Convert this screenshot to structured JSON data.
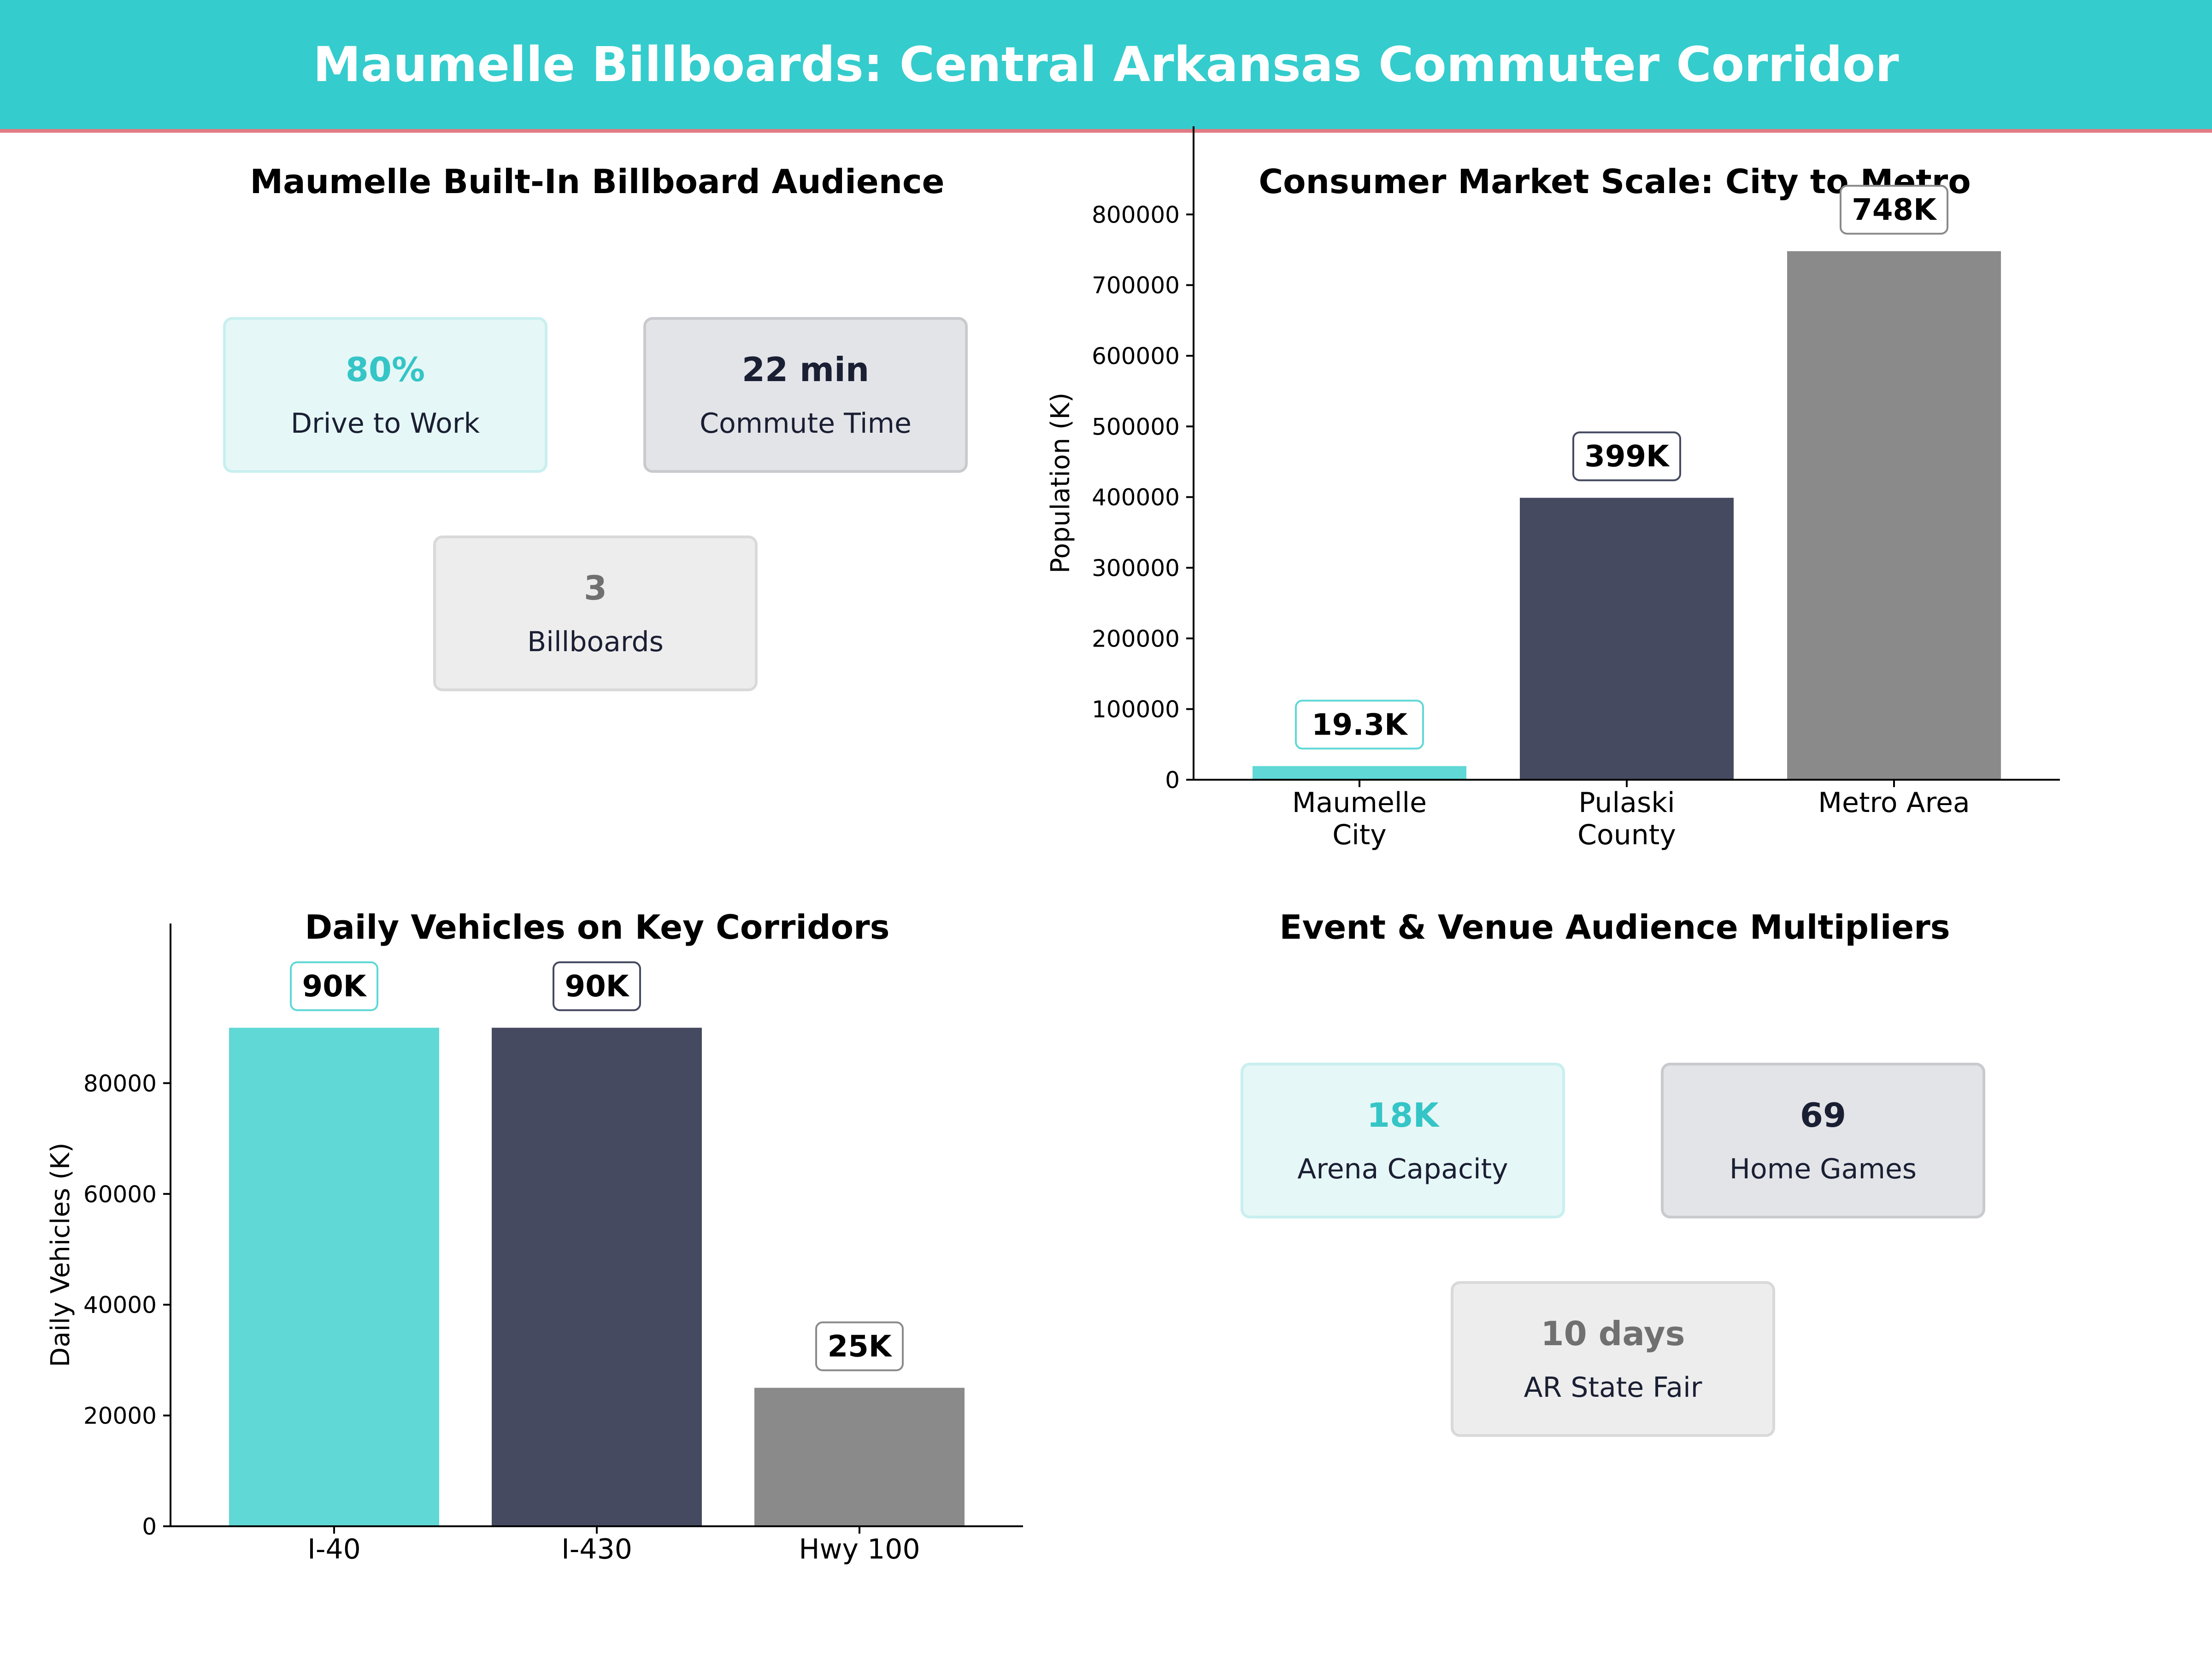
{
  "header": {
    "title": "Maumelle Billboards: Central Arkansas Commuter Corridor"
  },
  "panels": {
    "audience": {
      "title": "Maumelle Built-In Billboard Audience",
      "cards": [
        {
          "value": "80%",
          "label": "Drive to Work",
          "color": "#35c5c6"
        },
        {
          "value": "22 min",
          "label": "Commute Time",
          "color": "#1a1f33"
        },
        {
          "value": "3",
          "label": "Billboards",
          "color": "#707070"
        }
      ]
    },
    "events": {
      "title": "Event & Venue Audience Multipliers",
      "cards": [
        {
          "value": "18K",
          "label": "Arena Capacity",
          "color": "#35c5c6"
        },
        {
          "value": "69",
          "label": "Home Games",
          "color": "#1a1f33"
        },
        {
          "value": "10 days",
          "label": "AR State Fair",
          "color": "#707070"
        }
      ]
    }
  },
  "chart_data": [
    {
      "type": "bar",
      "title": "Consumer Market Scale: City to Metro",
      "categories": [
        [
          "Maumelle",
          "City"
        ],
        [
          "Pulaski",
          "County"
        ],
        [
          "Metro Area"
        ]
      ],
      "values": [
        19300,
        399000,
        748000
      ],
      "data_labels": [
        "19.3K",
        "399K",
        "748K"
      ],
      "colors": [
        "#5fd8d6",
        "#454a60",
        "#8a8a8a"
      ],
      "xlabel": "",
      "ylabel": "Population (K)",
      "ylim": [
        0,
        840000
      ],
      "yticks": [
        0,
        100000,
        200000,
        300000,
        400000,
        500000,
        600000,
        700000,
        800000
      ],
      "grid": false
    },
    {
      "type": "bar",
      "title": "Daily Vehicles on Key Corridors",
      "categories": [
        [
          "I-40"
        ],
        [
          "I-430"
        ],
        [
          "Hwy 100"
        ]
      ],
      "values": [
        90000,
        90000,
        25000
      ],
      "data_labels": [
        "90K",
        "90K",
        "25K"
      ],
      "colors": [
        "#5fd8d6",
        "#454a60",
        "#8a8a8a"
      ],
      "xlabel": "",
      "ylabel": "Daily Vehicles (K)",
      "ylim": [
        0,
        98000
      ],
      "yticks": [
        0,
        20000,
        40000,
        60000,
        80000
      ],
      "grid": false
    }
  ]
}
